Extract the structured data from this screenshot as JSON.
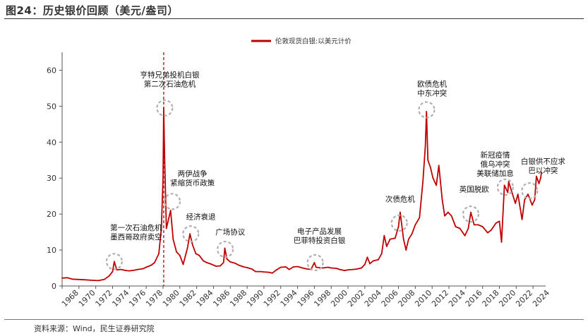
{
  "page": {
    "title": "图24：历史银价回顾（美元/盎司）",
    "source": "资料来源：Wind，民生证券研究院"
  },
  "chart_data": {
    "type": "line",
    "title": "图24：历史银价回顾（美元/盎司）",
    "legend_position": "top-center",
    "grid": false,
    "color": "#c00000",
    "ylim": [
      0,
      65
    ],
    "yticks": [
      0,
      10,
      20,
      30,
      40,
      50,
      60
    ],
    "xlim": [
      1968,
      2025.5
    ],
    "xticks": [
      "1968",
      "1970",
      "1972",
      "1974",
      "1976",
      "1978",
      "1980",
      "1982",
      "1984",
      "1986",
      "1988",
      "1990",
      "1992",
      "1994",
      "1996",
      "1998",
      "2000",
      "2002",
      "2004",
      "2006",
      "2008",
      "2010",
      "2012",
      "2014",
      "2016",
      "2018",
      "2020",
      "2022",
      "2024"
    ],
    "series": [
      {
        "name": "伦敦现货白银:以美元计价",
        "points": [
          [
            1968.0,
            2.2
          ],
          [
            1968.6,
            2.3
          ],
          [
            1969.2,
            1.9
          ],
          [
            1970.0,
            1.8
          ],
          [
            1970.8,
            1.7
          ],
          [
            1971.5,
            1.6
          ],
          [
            1972.3,
            1.5
          ],
          [
            1973.0,
            1.8
          ],
          [
            1973.6,
            2.8
          ],
          [
            1974.0,
            4.0
          ],
          [
            1974.2,
            6.8
          ],
          [
            1974.5,
            4.5
          ],
          [
            1975.0,
            4.6
          ],
          [
            1975.6,
            4.3
          ],
          [
            1976.0,
            4.2
          ],
          [
            1976.6,
            4.4
          ],
          [
            1977.0,
            4.6
          ],
          [
            1977.6,
            4.8
          ],
          [
            1978.0,
            5.2
          ],
          [
            1978.6,
            5.8
          ],
          [
            1979.0,
            6.5
          ],
          [
            1979.5,
            9.0
          ],
          [
            1979.8,
            16.0
          ],
          [
            1980.0,
            30.0
          ],
          [
            1980.08,
            49.5
          ],
          [
            1980.2,
            35.0
          ],
          [
            1980.4,
            16.0
          ],
          [
            1980.7,
            19.0
          ],
          [
            1980.9,
            21.0
          ],
          [
            1981.2,
            13.0
          ],
          [
            1981.6,
            9.5
          ],
          [
            1982.0,
            8.5
          ],
          [
            1982.4,
            6.0
          ],
          [
            1982.9,
            10.5
          ],
          [
            1983.2,
            14.5
          ],
          [
            1983.5,
            11.5
          ],
          [
            1983.9,
            9.0
          ],
          [
            1984.3,
            8.5
          ],
          [
            1984.8,
            7.0
          ],
          [
            1985.2,
            6.5
          ],
          [
            1985.8,
            6.0
          ],
          [
            1986.3,
            5.5
          ],
          [
            1986.8,
            5.6
          ],
          [
            1987.2,
            6.5
          ],
          [
            1987.35,
            10.5
          ],
          [
            1987.6,
            7.5
          ],
          [
            1988.0,
            6.7
          ],
          [
            1988.6,
            6.3
          ],
          [
            1989.0,
            5.8
          ],
          [
            1989.6,
            5.3
          ],
          [
            1990.0,
            5.1
          ],
          [
            1990.6,
            4.7
          ],
          [
            1991.0,
            4.0
          ],
          [
            1991.6,
            4.0
          ],
          [
            1992.0,
            3.9
          ],
          [
            1992.6,
            3.8
          ],
          [
            1993.0,
            3.6
          ],
          [
            1993.5,
            4.5
          ],
          [
            1994.0,
            5.2
          ],
          [
            1994.6,
            5.3
          ],
          [
            1995.0,
            4.6
          ],
          [
            1995.5,
            5.3
          ],
          [
            1996.0,
            5.4
          ],
          [
            1996.6,
            5.0
          ],
          [
            1997.0,
            4.8
          ],
          [
            1997.6,
            4.6
          ],
          [
            1998.0,
            6.5
          ],
          [
            1998.2,
            5.2
          ],
          [
            1998.6,
            5.1
          ],
          [
            1999.0,
            5.0
          ],
          [
            1999.6,
            5.2
          ],
          [
            2000.0,
            5.0
          ],
          [
            2000.6,
            4.9
          ],
          [
            2001.0,
            4.6
          ],
          [
            2001.6,
            4.3
          ],
          [
            2002.0,
            4.5
          ],
          [
            2002.6,
            4.6
          ],
          [
            2003.0,
            4.7
          ],
          [
            2003.6,
            5.0
          ],
          [
            2004.0,
            6.0
          ],
          [
            2004.3,
            8.0
          ],
          [
            2004.6,
            6.2
          ],
          [
            2005.0,
            7.0
          ],
          [
            2005.6,
            7.3
          ],
          [
            2006.0,
            9.0
          ],
          [
            2006.3,
            14.0
          ],
          [
            2006.6,
            11.0
          ],
          [
            2007.0,
            13.0
          ],
          [
            2007.6,
            13.3
          ],
          [
            2008.0,
            16.5
          ],
          [
            2008.2,
            20.5
          ],
          [
            2008.6,
            13.0
          ],
          [
            2008.9,
            10.0
          ],
          [
            2009.2,
            13.0
          ],
          [
            2009.6,
            14.5
          ],
          [
            2010.0,
            17.0
          ],
          [
            2010.5,
            19.0
          ],
          [
            2010.9,
            29.0
          ],
          [
            2011.2,
            39.0
          ],
          [
            2011.33,
            48.5
          ],
          [
            2011.5,
            35.0
          ],
          [
            2011.8,
            33.0
          ],
          [
            2012.1,
            30.0
          ],
          [
            2012.5,
            28.0
          ],
          [
            2012.8,
            33.5
          ],
          [
            2013.2,
            24.0
          ],
          [
            2013.5,
            19.5
          ],
          [
            2013.9,
            20.5
          ],
          [
            2014.3,
            19.5
          ],
          [
            2014.8,
            16.5
          ],
          [
            2015.3,
            16.0
          ],
          [
            2015.9,
            14.0
          ],
          [
            2016.3,
            16.0
          ],
          [
            2016.6,
            20.5
          ],
          [
            2017.0,
            17.0
          ],
          [
            2017.5,
            17.0
          ],
          [
            2018.0,
            16.5
          ],
          [
            2018.6,
            14.8
          ],
          [
            2019.0,
            15.5
          ],
          [
            2019.6,
            17.5
          ],
          [
            2020.0,
            18.0
          ],
          [
            2020.25,
            12.2
          ],
          [
            2020.6,
            28.0
          ],
          [
            2021.0,
            26.0
          ],
          [
            2021.1,
            29.0
          ],
          [
            2021.5,
            26.0
          ],
          [
            2021.9,
            23.0
          ],
          [
            2022.2,
            25.5
          ],
          [
            2022.7,
            18.5
          ],
          [
            2023.0,
            24.0
          ],
          [
            2023.4,
            25.5
          ],
          [
            2023.9,
            22.5
          ],
          [
            2024.2,
            24.0
          ],
          [
            2024.4,
            30.5
          ],
          [
            2024.7,
            28.5
          ],
          [
            2024.9,
            30.0
          ],
          [
            2025.0,
            31.5
          ]
        ]
      }
    ],
    "marker_line": {
      "x": 1980.08,
      "style": "dashed"
    },
    "annotations": [
      {
        "text_lines": [
          "第一次石油危机",
          "墨西哥政府卖空"
        ],
        "x": 1974.2,
        "y": 6.8,
        "label_x": 1976.8,
        "label_y": 15.5
      },
      {
        "text_lines": [
          "亨特兄弟投机白银",
          "第二次石油危机"
        ],
        "x": 1980.2,
        "y": 49.5,
        "label_x": 1980.8,
        "label_y": 58.0
      },
      {
        "text_lines": [
          "两伊战争",
          "紧缩货币政策"
        ],
        "x": 1981.1,
        "y": 23.5,
        "label_x": 1983.5,
        "label_y": 30.5
      },
      {
        "text_lines": [
          "经济衰退"
        ],
        "x": 1983.3,
        "y": 14.5,
        "label_x": 1984.5,
        "label_y": 18.6
      },
      {
        "text_lines": [
          "广场协议"
        ],
        "x": 1987.4,
        "y": 10.2,
        "label_x": 1988.0,
        "label_y": 14.3
      },
      {
        "text_lines": [
          "电子产品发展",
          "巴菲特投资白银"
        ],
        "x": 1998.1,
        "y": 6.5,
        "label_x": 1998.6,
        "label_y": 14.5
      },
      {
        "text_lines": [
          "次债危机"
        ],
        "x": 2008.1,
        "y": 17.5,
        "label_x": 2008.2,
        "label_y": 23.5
      },
      {
        "text_lines": [
          "欧债危机",
          "中东冲突"
        ],
        "x": 2011.35,
        "y": 49.0,
        "label_x": 2012.0,
        "label_y": 55.5
      },
      {
        "text_lines": [
          "英国脱欧"
        ],
        "x": 2016.6,
        "y": 20.0,
        "label_x": 2017.0,
        "label_y": 26.2
      },
      {
        "text_lines": [
          "新冠疫情",
          "俄乌冲突",
          "美联储加息"
        ],
        "x": 2020.7,
        "y": 27.5,
        "label_x": 2019.5,
        "label_y": 35.7
      },
      {
        "text_lines": [
          "白银供不应求",
          "巴以冲突"
        ],
        "x": 2023.6,
        "y": 26.5,
        "label_x": 2025.2,
        "label_y": 34.0
      }
    ]
  }
}
